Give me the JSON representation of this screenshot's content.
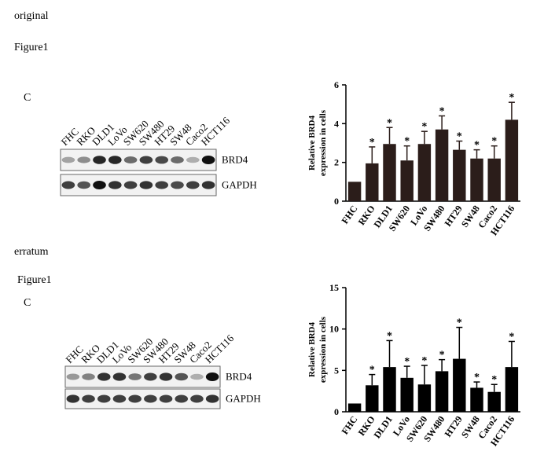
{
  "panels": [
    {
      "heading": "original",
      "figure": "Figure1",
      "panel": "C",
      "lanes": [
        "FHC",
        "RKO",
        "DLD1",
        "LoVo",
        "SW620",
        "SW480",
        "HT29",
        "SW48",
        "Caco2",
        "HCT116"
      ],
      "bands": [
        "BRD4",
        "GAPDH"
      ]
    },
    {
      "heading": "erratum",
      "figure": "Figure1",
      "panel": "C",
      "lanes": [
        "FHC",
        "RKO",
        "DLD1",
        "LoVo",
        "SW620",
        "SW480",
        "HT29",
        "SW48",
        "Caco2",
        "HCT116"
      ],
      "bands": [
        "BRD4",
        "GAPDH"
      ]
    }
  ],
  "chart_data": [
    {
      "type": "bar",
      "y_label_lines": [
        "Relative BRD4",
        "expression in cells"
      ],
      "categories": [
        "FHC",
        "RKO",
        "DLD1",
        "SW620",
        "LoVo",
        "SW480",
        "HT29",
        "SW48",
        "Caco2",
        "HCT116"
      ],
      "values": [
        1,
        1.95,
        2.95,
        2.1,
        2.95,
        3.7,
        2.65,
        2.2,
        2.2,
        4.2
      ],
      "errors": [
        0,
        0.85,
        0.85,
        0.75,
        0.65,
        0.7,
        0.45,
        0.45,
        0.65,
        0.9
      ],
      "markers": [
        null,
        "*",
        "*",
        "*",
        "*",
        "*",
        "*",
        "*",
        "*",
        "*"
      ],
      "color": "#2b1d1a",
      "ylim": [
        0,
        6
      ],
      "yticks": [
        0,
        2,
        4,
        6
      ]
    },
    {
      "type": "bar",
      "y_label_lines": [
        "Relative BRD4",
        "expression in cells"
      ],
      "categories": [
        "FHC",
        "RKO",
        "DLD1",
        "LoVo",
        "SW620",
        "SW480",
        "HT29",
        "SW48",
        "Caco2",
        "HCT116"
      ],
      "values": [
        1,
        3.2,
        5.4,
        4.1,
        3.3,
        4.9,
        6.4,
        2.9,
        2.4,
        5.4
      ],
      "errors": [
        0,
        1.3,
        3.2,
        1.4,
        2.3,
        1.4,
        3.8,
        0.7,
        0.9,
        3.1
      ],
      "markers": [
        null,
        "*",
        "*",
        "*",
        "*",
        "*",
        "*",
        "*",
        "*",
        "*"
      ],
      "color": "#000000",
      "ylim": [
        0,
        15
      ],
      "yticks": [
        0,
        5,
        10,
        15
      ]
    }
  ]
}
